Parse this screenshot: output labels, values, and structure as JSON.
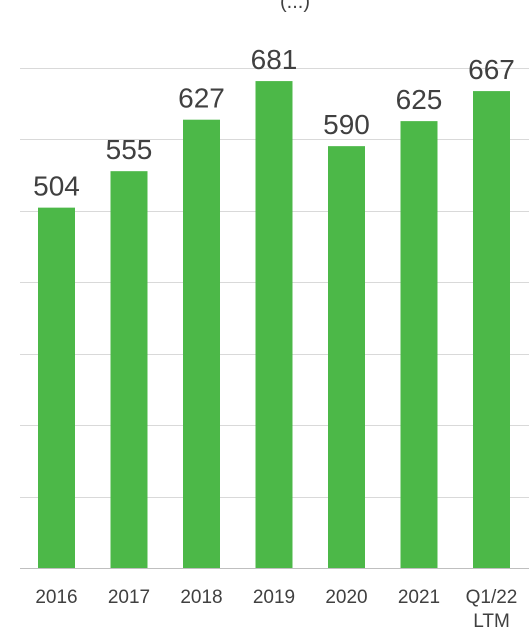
{
  "chart_data": {
    "type": "bar",
    "title": "(...)",
    "xlabel": "",
    "ylabel": "",
    "categories": [
      [
        "2016"
      ],
      [
        "2017"
      ],
      [
        "2018"
      ],
      [
        "2019"
      ],
      [
        "2020"
      ],
      [
        "2021"
      ],
      [
        "Q1/22",
        "LTM"
      ]
    ],
    "values": [
      504,
      555,
      627,
      681,
      590,
      625,
      667
    ],
    "ylim": [
      0,
      800
    ],
    "gridlines": true,
    "legend": "none",
    "bar_color": "#4cb848"
  }
}
